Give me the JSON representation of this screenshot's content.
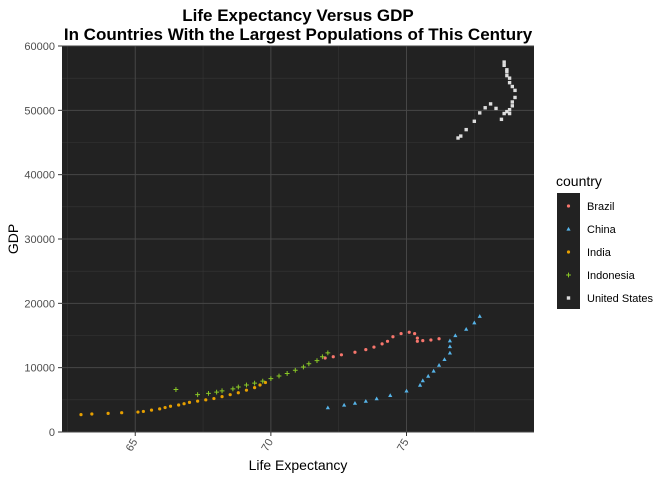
{
  "chart_data": {
    "type": "scatter",
    "title_lines": [
      "Life Expectancy Versus GDP",
      "In Countries With the Largest Populations of This Century"
    ],
    "xlabel": "Life Expectancy",
    "ylabel": "GDP",
    "xlim": [
      62.3,
      79.7
    ],
    "ylim": [
      0,
      60000
    ],
    "x_ticks": [
      65,
      70,
      75
    ],
    "y_ticks": [
      0,
      10000,
      20000,
      30000,
      40000,
      50000,
      60000
    ],
    "grid": true,
    "background": "#222222",
    "legend_title": "country",
    "legend_position": "right",
    "series": [
      {
        "name": "Brazil",
        "color": "#f8766d",
        "marker": "circle",
        "x": [
          72.0,
          72.3,
          72.6,
          73.1,
          73.5,
          73.8,
          74.1,
          74.3,
          74.5,
          74.8,
          75.1,
          75.3,
          75.4,
          75.4,
          75.6,
          75.9,
          76.2
        ],
        "y": [
          11500,
          11700,
          12000,
          12400,
          12800,
          13200,
          13700,
          14100,
          14800,
          15300,
          15500,
          15300,
          14600,
          14100,
          14200,
          14300,
          14500
        ]
      },
      {
        "name": "China",
        "color": "#56b4e9",
        "marker": "triangle",
        "x": [
          72.1,
          72.7,
          73.1,
          73.5,
          73.9,
          74.4,
          75.0,
          75.5,
          75.6,
          75.8,
          76.0,
          76.2,
          76.4,
          76.6,
          76.6,
          76.6,
          76.8,
          77.2,
          77.5,
          77.7
        ],
        "y": [
          3800,
          4200,
          4500,
          4800,
          5200,
          5700,
          6400,
          7300,
          8000,
          8700,
          9500,
          10400,
          11300,
          12300,
          13300,
          14200,
          15000,
          16000,
          17000,
          18000
        ]
      },
      {
        "name": "India",
        "color": "#e69f00",
        "marker": "circle",
        "x": [
          63.0,
          63.4,
          64.0,
          64.5,
          65.1,
          65.3,
          65.6,
          65.9,
          66.1,
          66.3,
          66.6,
          66.8,
          67.0,
          67.3,
          67.6,
          67.9,
          68.2,
          68.5,
          68.8,
          69.1,
          69.4,
          69.6,
          69.8
        ],
        "y": [
          2700,
          2800,
          2900,
          3000,
          3100,
          3200,
          3400,
          3600,
          3800,
          4000,
          4200,
          4400,
          4600,
          4800,
          5000,
          5200,
          5500,
          5800,
          6100,
          6500,
          6900,
          7300,
          7700
        ]
      },
      {
        "name": "Indonesia",
        "color": "#8ac926",
        "marker": "plus",
        "x": [
          66.5,
          67.3,
          67.7,
          68.0,
          68.2,
          68.6,
          68.8,
          69.1,
          69.4,
          69.7,
          70.0,
          70.3,
          70.6,
          70.9,
          71.2,
          71.4,
          71.7,
          71.9,
          72.1
        ],
        "y": [
          6600,
          5800,
          6000,
          6200,
          6400,
          6700,
          7000,
          7300,
          7600,
          7900,
          8300,
          8700,
          9100,
          9600,
          10100,
          10600,
          11100,
          11700,
          12300
        ]
      },
      {
        "name": "United States",
        "color": "#dddddd",
        "marker": "square",
        "x": [
          76.9,
          77.0,
          77.2,
          77.5,
          77.7,
          77.9,
          78.1,
          78.3,
          78.5,
          78.6,
          78.7,
          78.8,
          78.9,
          78.9,
          79.0,
          79.0,
          78.9,
          78.8,
          78.7,
          78.7,
          78.6,
          78.6,
          78.7,
          78.8,
          78.8
        ],
        "y": [
          45700,
          46000,
          47000,
          48300,
          49600,
          50400,
          51000,
          50300,
          48600,
          49500,
          49800,
          50100,
          50700,
          51300,
          52000,
          53100,
          53700,
          54300,
          55400,
          56300,
          57000,
          57500,
          56000,
          55000,
          49500
        ]
      }
    ]
  }
}
